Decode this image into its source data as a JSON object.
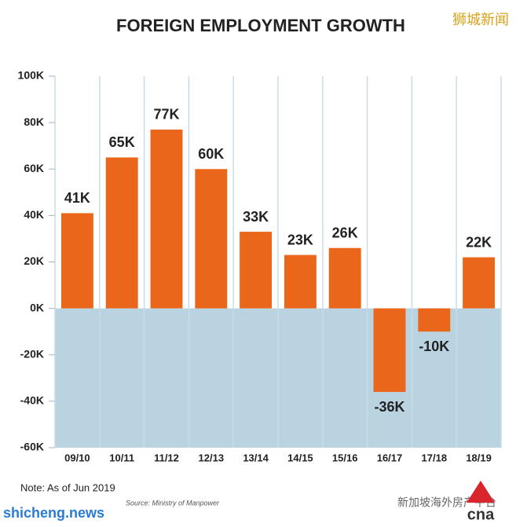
{
  "chart_data": {
    "type": "bar",
    "title": "FOREIGN EMPLOYMENT GROWTH",
    "categories": [
      "09/10",
      "10/11",
      "11/12",
      "12/13",
      "13/14",
      "14/15",
      "15/16",
      "16/17",
      "17/18",
      "18/19"
    ],
    "values": [
      41000,
      65000,
      77000,
      60000,
      33000,
      23000,
      26000,
      -36000,
      -10000,
      22000
    ],
    "value_labels": [
      "41K",
      "65K",
      "77K",
      "60K",
      "33K",
      "23K",
      "26K",
      "-36K",
      "-10K",
      "22K"
    ],
    "color": "#e9661b",
    "ylim": [
      -60000,
      100000
    ],
    "yticks": [
      {
        "value": -60000,
        "label": "-60K"
      },
      {
        "value": -40000,
        "label": "-40K"
      },
      {
        "value": -20000,
        "label": "-20K"
      },
      {
        "value": 0,
        "label": "0K"
      },
      {
        "value": 20000,
        "label": "20K"
      },
      {
        "value": 40000,
        "label": "40K"
      },
      {
        "value": 60000,
        "label": "60K"
      },
      {
        "value": 80000,
        "label": "80K"
      },
      {
        "value": 100000,
        "label": "100K"
      }
    ],
    "note": "Note: As of Jun 2019",
    "source": "Source: Ministry of Manpower",
    "watermark_top": "狮城新闻",
    "watermark_bottom": "新加坡海外房产平台",
    "watermark_site": "shicheng.news",
    "logo": "cna"
  }
}
